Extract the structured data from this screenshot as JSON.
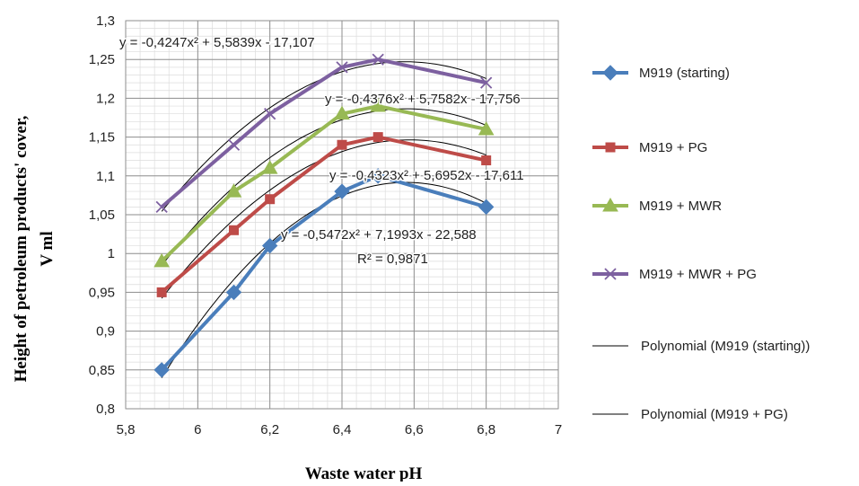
{
  "chart_data": {
    "type": "line",
    "title": "",
    "xlabel": "Waste water pH",
    "ylabel_line1": "Height of petroleum products' cover,",
    "ylabel_line2": "V ml",
    "xlim": [
      5.8,
      7
    ],
    "ylim": [
      0.8,
      1.3
    ],
    "x_ticks": [
      "5,8",
      "6",
      "6,2",
      "6,4",
      "6,6",
      "6,8",
      "7"
    ],
    "y_ticks": [
      "0,8",
      "0,85",
      "0,9",
      "0,95",
      "1",
      "1,05",
      "1,1",
      "1,15",
      "1,2",
      "1,25",
      "1,3"
    ],
    "grid": true,
    "legend_position": "right",
    "x": [
      5.9,
      6.1,
      6.2,
      6.4,
      6.5,
      6.8
    ],
    "series": [
      {
        "name": "M919 (starting)",
        "values": [
          0.85,
          0.95,
          1.01,
          1.08,
          1.1,
          1.06
        ],
        "color": "#4A7EBB",
        "marker": "diamond"
      },
      {
        "name": "M919 + PG",
        "values": [
          0.95,
          1.03,
          1.07,
          1.14,
          1.15,
          1.12
        ],
        "color": "#BE4B48",
        "marker": "square"
      },
      {
        "name": "M919 + MWR",
        "values": [
          0.99,
          1.08,
          1.11,
          1.18,
          1.19,
          1.16
        ],
        "color": "#98B954",
        "marker": "triangle"
      },
      {
        "name": "M919 + MWR + PG",
        "values": [
          1.06,
          1.14,
          1.18,
          1.24,
          1.25,
          1.22
        ],
        "color": "#7D60A0",
        "marker": "cross"
      }
    ],
    "trendlines": [
      {
        "name": "Polynomial (M919 (starting))",
        "a": -0.5472,
        "b": 7.1993,
        "c": -22.588
      },
      {
        "name": "Polynomial (M919 + PG)",
        "a": -0.4323,
        "b": 5.6952,
        "c": -17.611
      },
      {
        "name": "",
        "a": -0.4376,
        "b": 5.7582,
        "c": -17.756
      },
      {
        "name": "",
        "a": -0.4247,
        "b": 5.5839,
        "c": -17.107
      }
    ],
    "annotations": [
      {
        "text": "y = -0,4247x² + 5,5839x - 17,107"
      },
      {
        "text": "y = -0,4376x² + 5,7582x - 17,756"
      },
      {
        "text": "y = -0,4323x² + 5,6952x - 17,611"
      },
      {
        "text": "y = -0,5472x² + 7,1993x - 22,588"
      },
      {
        "text": "R² = 0,9871"
      }
    ],
    "legend": [
      "M919 (starting)",
      "M919 + PG",
      "M919 + MWR",
      "M919 + MWR + PG",
      "Polynomial (M919 (starting))",
      "Polynomial (M919 + PG)"
    ]
  }
}
